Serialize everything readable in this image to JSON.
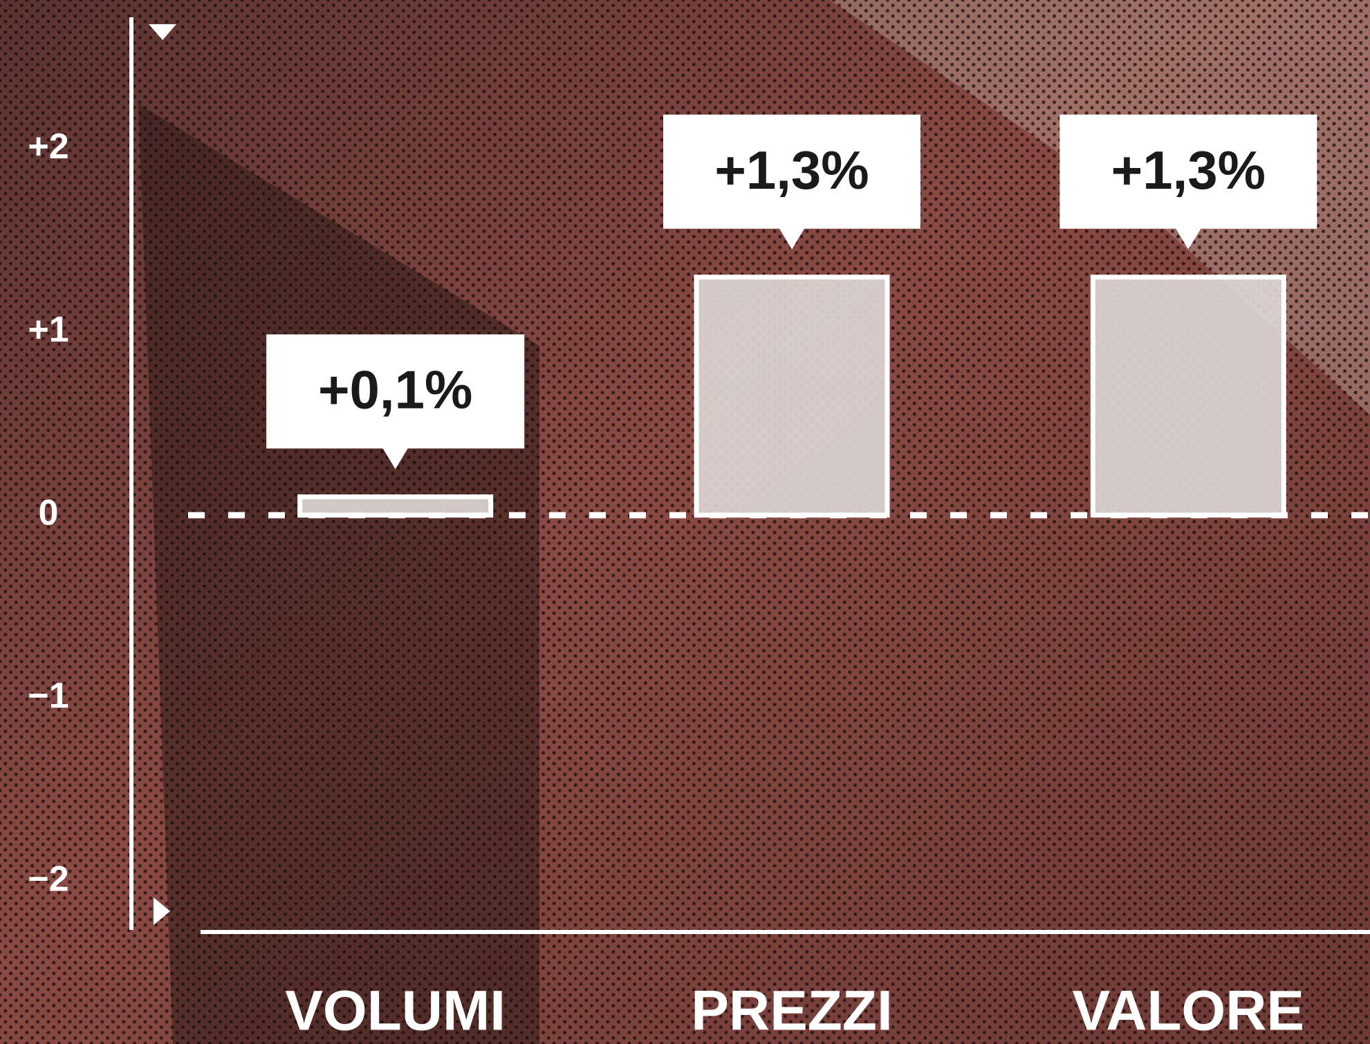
{
  "chart_data": {
    "type": "bar",
    "categories": [
      "VOLUMI",
      "PREZZI",
      "VALORE"
    ],
    "values": [
      0.1,
      1.3,
      1.3
    ],
    "value_labels": [
      "+0,1%",
      "+1,3%",
      "+1,3%"
    ],
    "color": "#ddd6d4",
    "ylim": [
      -2.25,
      2.7
    ],
    "yticks": [
      {
        "value": 2,
        "label": "+2"
      },
      {
        "value": 1,
        "label": "+1"
      },
      0,
      {
        "value": -1,
        "label": "−1"
      },
      {
        "value": -2,
        "label": "−2"
      }
    ]
  }
}
